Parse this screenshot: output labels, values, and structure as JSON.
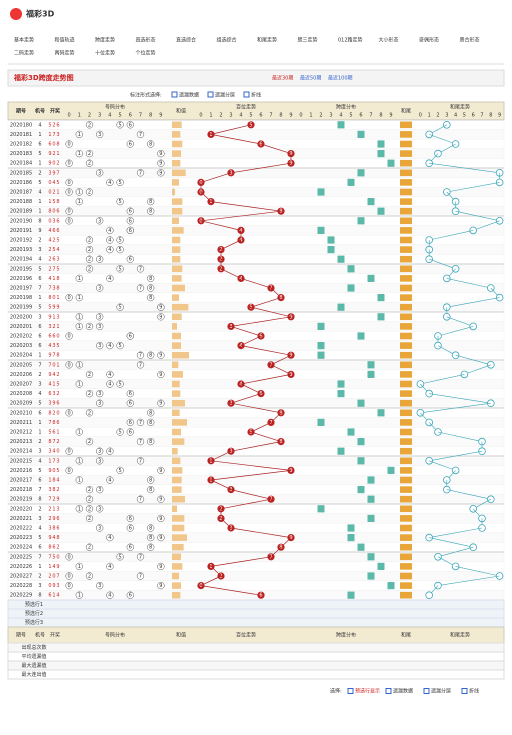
{
  "header": {
    "logo": "福彩3D",
    "nav": [
      "基本走势",
      "和值轨迹",
      "跨度走势",
      "直选形态",
      "直选综合",
      "组选综合",
      "和尾走势",
      "胆三走势",
      "012路走势",
      "大小形态",
      "奇偶形态",
      "质合形态",
      "二码走势",
      "两码走势",
      "十位走势",
      "个位走势"
    ]
  },
  "title_bar": {
    "title": "福彩3D跨度走势图",
    "ranges": [
      "最近30期",
      "最近50期",
      "最近100期"
    ]
  },
  "controls": {
    "label": "标注形式选择:",
    "options": [
      "遗漏数据",
      "遗漏分层",
      "折线"
    ]
  },
  "table": {
    "columns": [
      "期号",
      "机号",
      "开奖"
    ],
    "sections": [
      "号码分布",
      "和值",
      "百位走势",
      "跨度分布",
      "和尾",
      "和尾走势"
    ],
    "digit_headers": [
      0,
      1,
      2,
      3,
      4,
      5,
      6,
      7,
      8,
      9
    ],
    "issues": [
      2020180,
      2020181,
      2020182,
      2020183,
      2020184,
      2020185,
      2020186,
      2020187,
      2020188,
      2020189,
      2020190,
      2020191,
      2020192,
      2020193,
      2020194,
      2020195,
      2020196,
      2020197,
      2020198,
      2020199,
      2020200,
      2020201,
      2020202,
      2020203,
      2020204,
      2020205,
      2020206,
      2020207,
      2020208,
      2020209,
      2020210,
      2020211,
      2020212,
      2020213,
      2020214,
      2020215,
      2020216,
      2020217,
      2020218,
      2020219,
      2020220,
      2020221,
      2020222,
      2020223,
      2020224,
      2020225,
      2020226,
      2020227,
      2020228,
      2020229
    ],
    "machine": [
      4,
      1,
      6,
      5,
      1,
      2,
      5,
      4,
      1,
      1,
      8,
      9,
      2,
      3,
      4,
      5,
      6,
      7,
      1,
      5,
      3,
      6,
      6,
      6,
      1,
      7,
      2,
      3,
      4,
      5,
      6,
      1,
      1,
      2,
      3,
      4,
      5,
      6,
      7,
      8,
      2,
      3,
      4,
      5,
      6,
      7,
      1,
      2,
      3,
      8
    ],
    "draws": [
      [
        5,
        2,
        6
      ],
      [
        1,
        7,
        3
      ],
      [
        6,
        0,
        8
      ],
      [
        9,
        2,
        1
      ],
      [
        9,
        0,
        2
      ],
      [
        3,
        9,
        7
      ],
      [
        0,
        4,
        5
      ],
      [
        0,
        2,
        1
      ],
      [
        1,
        5,
        8
      ],
      [
        8,
        0,
        6
      ],
      [
        0,
        3,
        6
      ],
      [
        4,
        6,
        6
      ],
      [
        4,
        2,
        5
      ],
      [
        2,
        5,
        4
      ],
      [
        2,
        6,
        3
      ],
      [
        2,
        7,
        5
      ],
      [
        4,
        1,
        8
      ],
      [
        7,
        3,
        8
      ],
      [
        8,
        0,
        1
      ],
      [
        5,
        9,
        9
      ],
      [
        9,
        1,
        3
      ],
      [
        3,
        2,
        1
      ],
      [
        6,
        6,
        0
      ],
      [
        4,
        3,
        5
      ],
      [
        9,
        7,
        8
      ],
      [
        7,
        0,
        1
      ],
      [
        9,
        4,
        2
      ],
      [
        4,
        1,
        5
      ],
      [
        6,
        3,
        2
      ],
      [
        3,
        9,
        6
      ],
      [
        8,
        2,
        0
      ],
      [
        7,
        8,
        6
      ],
      [
        5,
        6,
        1
      ],
      [
        8,
        7,
        2
      ],
      [
        3,
        4,
        0
      ],
      [
        1,
        7,
        3
      ],
      [
        9,
        0,
        5
      ],
      [
        1,
        8,
        4
      ],
      [
        3,
        8,
        2
      ],
      [
        7,
        2,
        9
      ],
      [
        2,
        1,
        3
      ],
      [
        2,
        9,
        6
      ],
      [
        3,
        8,
        6
      ],
      [
        9,
        4,
        8
      ],
      [
        8,
        6,
        2
      ],
      [
        7,
        5,
        0
      ],
      [
        1,
        4,
        9
      ],
      [
        2,
        0,
        7
      ],
      [
        0,
        9,
        3
      ],
      [
        6,
        1,
        4
      ]
    ],
    "preselect": [
      "预选行1",
      "预选行2",
      "预选行3"
    ],
    "stats": [
      "出现总次数",
      "平均遗漏值",
      "最大遗漏值",
      "最大连出值"
    ]
  },
  "footer": {
    "label": "选择:",
    "options": [
      "预选行显示",
      "遗漏数据",
      "遗漏分层",
      "折线"
    ]
  }
}
